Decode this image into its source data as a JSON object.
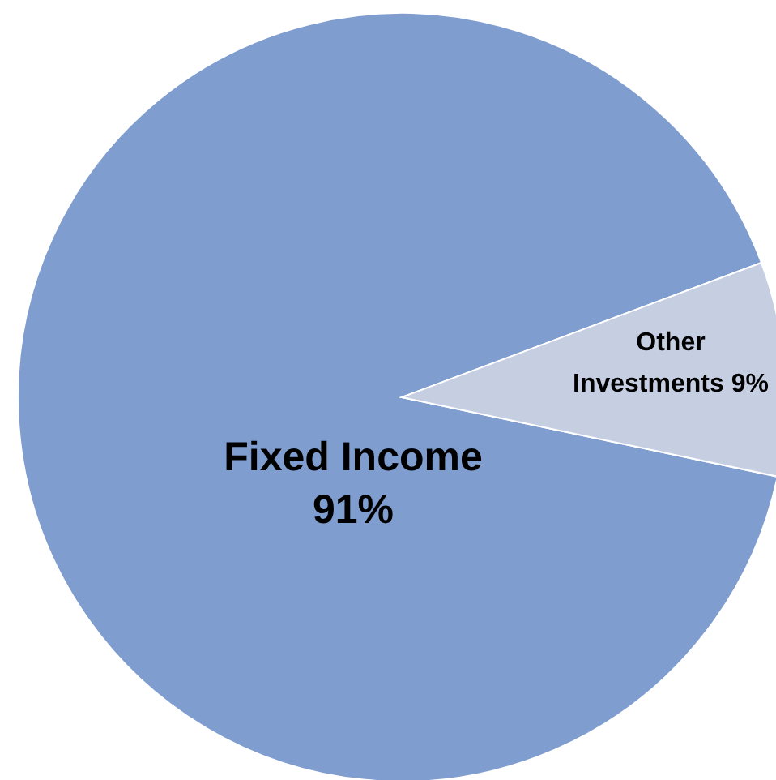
{
  "chart_data": {
    "type": "pie",
    "categories": [
      "Fixed Income",
      "Other Investments"
    ],
    "values": [
      91,
      9
    ],
    "colors": [
      "#7f9dcf",
      "#c6cfe2"
    ],
    "value_labels": [
      "91%",
      "9%"
    ]
  }
}
